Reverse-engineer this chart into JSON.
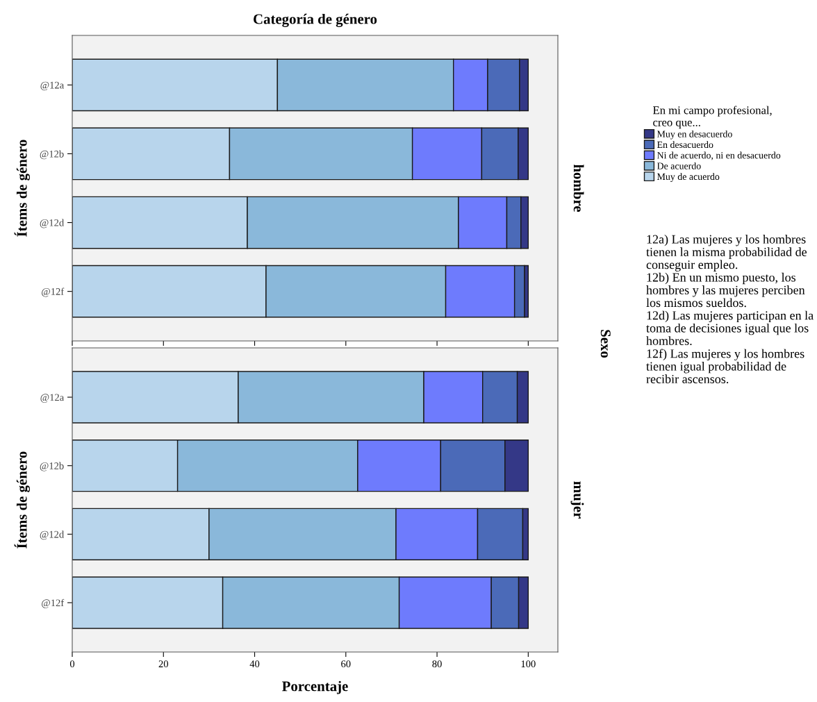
{
  "chart_data": [
    {
      "type": "bar",
      "orientation": "horizontal",
      "stacked": true,
      "title": "Categoría de género",
      "ylabel": "Ítems de género",
      "legend_title": "En mi campo profesional,\ncreo que...",
      "legend": "top right",
      "tick_labels": "y",
      "grid": false,
      "categories": [
        "@12a",
        "@12b",
        "@12d",
        "@12f"
      ],
      "xlim": [
        0,
        106.5
      ],
      "xticks": [
        0,
        20,
        40,
        60,
        80,
        100
      ],
      "series": [
        {
          "name": "Muy de acuerdo",
          "color": "#b8d5ec",
          "values": [
            45.0,
            34.5,
            38.4,
            42.5
          ]
        },
        {
          "name": "De acuerdo",
          "color": "#8ab8da",
          "values": [
            38.6,
            40.1,
            46.3,
            39.4
          ]
        },
        {
          "name": "Ni de acuerdo, ni en desacuerdo",
          "color": "#6e7bfd",
          "values": [
            7.5,
            15.2,
            10.6,
            15.1
          ]
        },
        {
          "name": "En desacuerdo",
          "color": "#4b6ab8",
          "values": [
            7.0,
            8.0,
            3.1,
            2.2
          ]
        },
        {
          "name": "Muy en desacuerdo",
          "color": "#343887",
          "values": [
            1.9,
            2.2,
            1.6,
            0.8
          ]
        }
      ],
      "annotations": [
        "hombre",
        "Sexo",
        "12a) Las mujeres y los hombres tienen la misma probabilidad de conseguir empleo.\n12b) En un mismo puesto, los hombres y las mujeres perciben los mismos sueldos.\n12d) Las mujeres participan en la toma de decisiones igual que los hombres.\n12f) Las mujeres y los hombres tienen igual probabilidad de recibir ascensos."
      ]
    },
    {
      "type": "bar",
      "orientation": "horizontal",
      "stacked": true,
      "xlabel": "Porcentaje",
      "ylabel": "Ítems de género",
      "grid": false,
      "categories": [
        "@12a",
        "@12b",
        "@12d",
        "@12f"
      ],
      "xlim": [
        0,
        106.5
      ],
      "xticks": [
        0,
        20,
        40,
        60,
        80,
        100
      ],
      "series": [
        {
          "color": "#b8d5ec",
          "values": [
            36.4,
            23.1,
            30.0,
            33.0
          ]
        },
        {
          "color": "#8ab8da",
          "values": [
            40.7,
            39.5,
            41.0,
            38.7
          ]
        },
        {
          "color": "#6e7bfd",
          "values": [
            12.9,
            18.2,
            17.9,
            20.2
          ]
        },
        {
          "color": "#4b6ab8",
          "values": [
            7.6,
            14.1,
            9.9,
            6.0
          ]
        },
        {
          "color": "#343887",
          "values": [
            2.4,
            5.1,
            1.2,
            2.1
          ]
        }
      ],
      "annotations": [
        "mujer"
      ]
    }
  ]
}
